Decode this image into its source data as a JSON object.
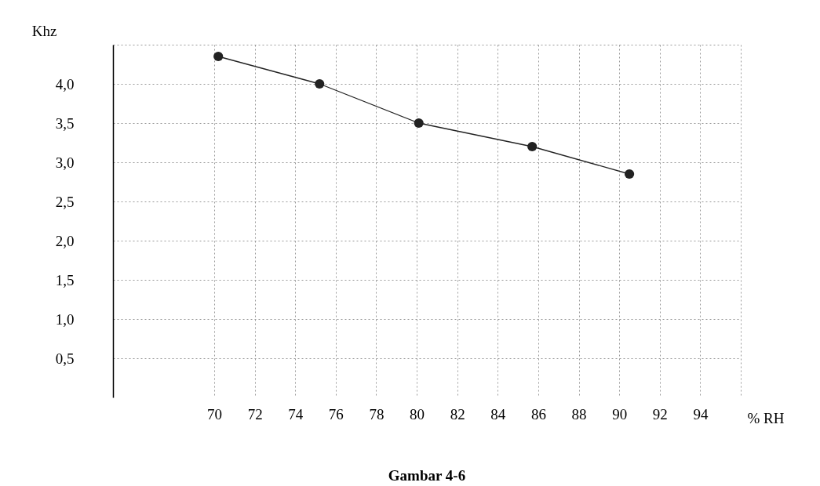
{
  "chart_data": {
    "type": "line",
    "title": "Gambar 4-6",
    "xlabel": "% RH",
    "ylabel": "Khz",
    "x": [
      70.2,
      75.2,
      80.1,
      85.7,
      90.5
    ],
    "series": [
      {
        "color": "#222222",
        "values": [
          4.35,
          4.0,
          3.5,
          3.2,
          2.85
        ]
      }
    ],
    "xlim": [
      65,
      96
    ],
    "ylim": [
      0,
      4.5
    ],
    "xticks": [
      70,
      72,
      74,
      76,
      78,
      80,
      82,
      84,
      86,
      88,
      90,
      92,
      94,
      {
        "value": 96,
        "label": null
      }
    ],
    "yticks": [
      {
        "value": 0.5,
        "label": "0,5"
      },
      {
        "value": 1,
        "label": "1,0"
      },
      {
        "value": 1.5,
        "label": "1,5"
      },
      {
        "value": 2,
        "label": "2,0"
      },
      {
        "value": 2.5,
        "label": "2,5"
      },
      {
        "value": 3,
        "label": "3,0"
      },
      {
        "value": 3.5,
        "label": "3,5"
      },
      {
        "value": 4,
        "label": "4,0"
      },
      {
        "value": 4.5,
        "label": null
      }
    ],
    "grid": true,
    "marker": "circle",
    "line_style": "solid"
  }
}
